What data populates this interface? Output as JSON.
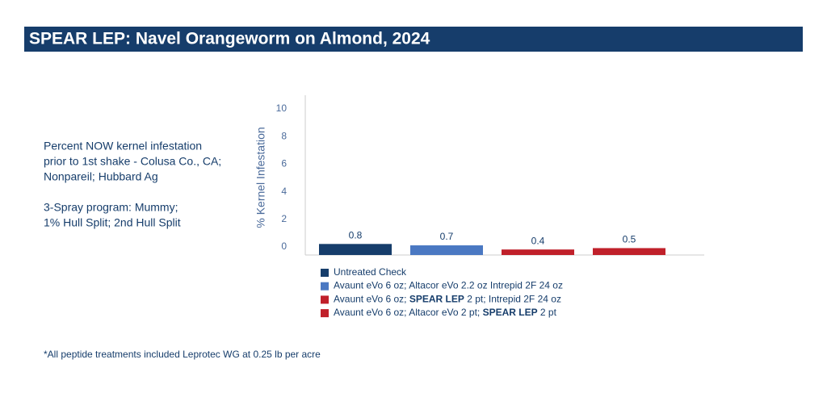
{
  "header": {
    "title": "SPEAR LEP: Navel Orangeworm on Almond, 2024"
  },
  "description": [
    [
      "Percent NOW kernel infestation",
      "prior to 1st shake - Colusa Co., CA;",
      "Nonpareil; Hubbard Ag"
    ],
    [
      "3-Spray program: Mummy;",
      "1% Hull Split; 2nd Hull Split"
    ]
  ],
  "footnote": "*All peptide treatments included Leprotec WG at 0.25 lb per acre",
  "chart_data": {
    "type": "bar",
    "ylabel": "% Kernel Infestation",
    "categories": [
      [
        {
          "text": "Untreated Check"
        }
      ],
      [
        {
          "text": "Avaunt eVo 6 oz; Altacor eVo 2.2 oz Intrepid 2F 24 oz"
        }
      ],
      [
        {
          "text": "Avaunt eVo 6 oz; "
        },
        {
          "text": "SPEAR LEP",
          "bold": true
        },
        {
          "text": " 2 pt; Intrepid 2F 24 oz"
        }
      ],
      [
        {
          "text": "Avaunt eVo 6 oz; Altacor eVo 2 pt; "
        },
        {
          "text": "SPEAR LEP",
          "bold": true
        },
        {
          "text": " 2 pt"
        }
      ]
    ],
    "values": [
      0.8,
      0.7,
      0.4,
      0.5
    ],
    "colors": [
      "#163d6b",
      "#4a78c2",
      "#c0202a",
      "#c0202a"
    ],
    "ylim": [
      0,
      10
    ],
    "yticks": [
      0,
      2,
      4,
      6,
      8,
      10
    ],
    "grid": false
  }
}
